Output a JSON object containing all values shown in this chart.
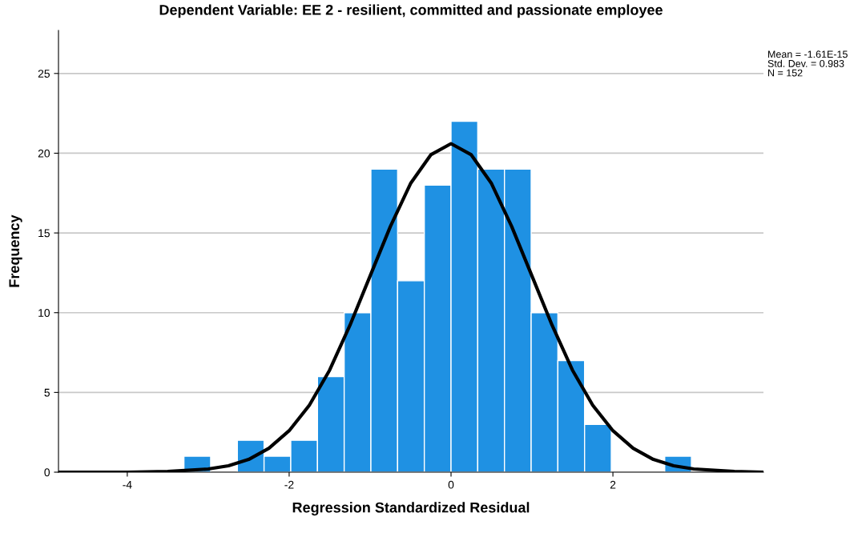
{
  "chart_data": {
    "type": "histogram",
    "title": "Dependent Variable: EE 2 - resilient, committed and passionate employee",
    "xlabel": "Regression Standardized Residual",
    "ylabel": "Frequency",
    "bins": [
      -3.3,
      -2.97,
      -2.64,
      -2.31,
      -1.98,
      -1.65,
      -1.32,
      -0.99,
      -0.66,
      -0.33,
      0,
      0.33,
      0.66,
      0.99,
      1.32,
      1.65,
      1.98,
      2.31,
      2.64,
      2.97
    ],
    "values": [
      1,
      0,
      2,
      1,
      2,
      6,
      10,
      19,
      12,
      18,
      22,
      19,
      19,
      10,
      7,
      3,
      0,
      0,
      1
    ],
    "color": "#1f91e3",
    "series": [
      {
        "type": "line",
        "color": "#000000",
        "x": [
          -4.85,
          -4,
          -3.5,
          -3,
          -2.75,
          -2.5,
          -2.25,
          -2,
          -1.75,
          -1.5,
          -1.25,
          -1,
          -0.75,
          -0.5,
          -0.25,
          0,
          0.25,
          0.5,
          0.75,
          1,
          1.25,
          1.5,
          1.75,
          2,
          2.25,
          2.5,
          2.75,
          3,
          3.5,
          3.86
        ],
        "values": [
          0,
          0,
          0.04,
          0.2,
          0.4,
          0.8,
          1.5,
          2.6,
          4.2,
          6.4,
          9.2,
          12.3,
          15.4,
          18.1,
          19.9,
          20.6,
          19.9,
          18.1,
          15.4,
          12.3,
          9.2,
          6.4,
          4.2,
          2.6,
          1.5,
          0.8,
          0.4,
          0.2,
          0.04,
          0
        ]
      }
    ],
    "xlim": [
      -4.85,
      3.86
    ],
    "ylim": [
      0,
      27.7
    ],
    "xticks": [
      -4,
      -2,
      0,
      2
    ],
    "yticks": [
      0,
      5,
      10,
      15,
      20,
      25
    ],
    "grid": "y",
    "annotations": [
      "Mean = -1.61E-15",
      "Std. Dev. = 0.983",
      "N = 152"
    ]
  }
}
